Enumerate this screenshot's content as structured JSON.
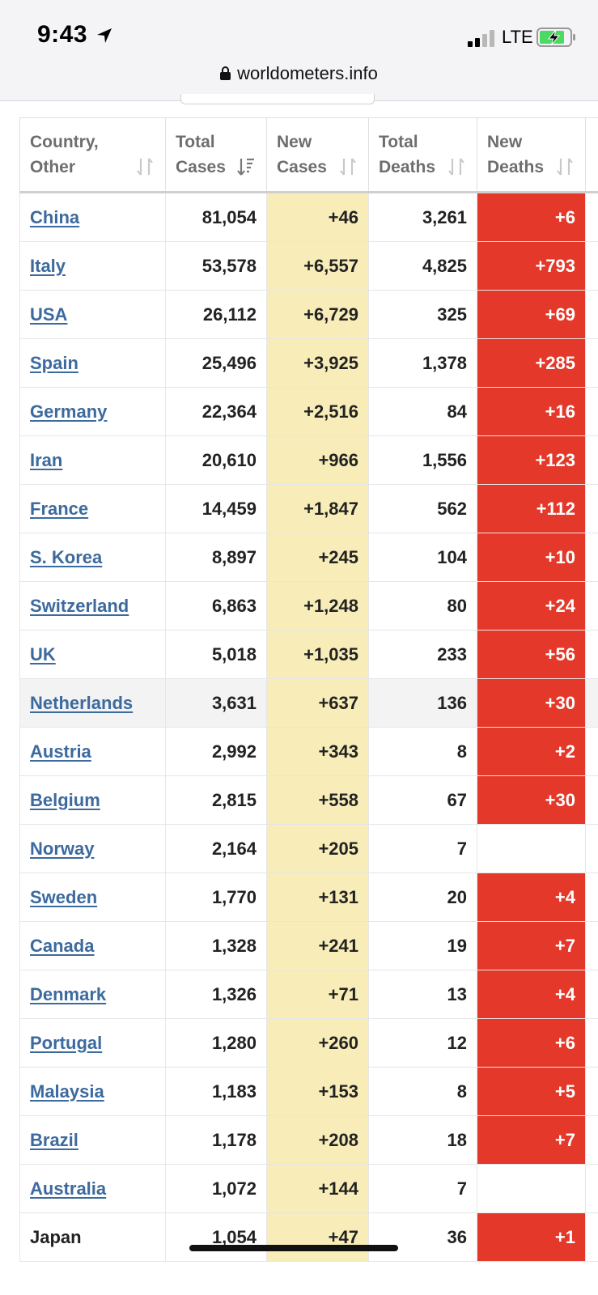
{
  "status_bar": {
    "time": "9:43",
    "network": "LTE",
    "location_icon": "location-arrow-icon",
    "signal_icon": "cellular-signal-icon",
    "battery_icon": "battery-charging-icon",
    "battery_color": "#4cd964"
  },
  "browser": {
    "url": "worldometers.info",
    "lock_icon": "lock-icon"
  },
  "table": {
    "headers": [
      {
        "line1": "Country,",
        "line2": "Other",
        "icon": "sort-icon"
      },
      {
        "line1": "Total",
        "line2": "Cases",
        "icon": "sort-desc-icon"
      },
      {
        "line1": "New",
        "line2": "Cases",
        "icon": "sort-icon"
      },
      {
        "line1": "Total",
        "line2": "Deaths",
        "icon": "sort-icon"
      },
      {
        "line1": "New",
        "line2": "Deaths",
        "icon": "sort-icon"
      }
    ],
    "colors": {
      "new_cases_bg": "#f8edb8",
      "new_deaths_bg": "#e4382a",
      "link": "#3d6a9e"
    },
    "rows": [
      {
        "country": "China",
        "total_cases": "81,054",
        "new_cases": "+46",
        "total_deaths": "3,261",
        "new_deaths": "+6",
        "link": true
      },
      {
        "country": "Italy",
        "total_cases": "53,578",
        "new_cases": "+6,557",
        "total_deaths": "4,825",
        "new_deaths": "+793",
        "link": true
      },
      {
        "country": "USA",
        "total_cases": "26,112",
        "new_cases": "+6,729",
        "total_deaths": "325",
        "new_deaths": "+69",
        "link": true
      },
      {
        "country": "Spain",
        "total_cases": "25,496",
        "new_cases": "+3,925",
        "total_deaths": "1,378",
        "new_deaths": "+285",
        "link": true
      },
      {
        "country": "Germany",
        "total_cases": "22,364",
        "new_cases": "+2,516",
        "total_deaths": "84",
        "new_deaths": "+16",
        "link": true
      },
      {
        "country": "Iran",
        "total_cases": "20,610",
        "new_cases": "+966",
        "total_deaths": "1,556",
        "new_deaths": "+123",
        "link": true
      },
      {
        "country": "France",
        "total_cases": "14,459",
        "new_cases": "+1,847",
        "total_deaths": "562",
        "new_deaths": "+112",
        "link": true
      },
      {
        "country": "S. Korea",
        "total_cases": "8,897",
        "new_cases": "+245",
        "total_deaths": "104",
        "new_deaths": "+10",
        "link": true
      },
      {
        "country": "Switzerland",
        "total_cases": "6,863",
        "new_cases": "+1,248",
        "total_deaths": "80",
        "new_deaths": "+24",
        "link": true
      },
      {
        "country": "UK",
        "total_cases": "5,018",
        "new_cases": "+1,035",
        "total_deaths": "233",
        "new_deaths": "+56",
        "link": true
      },
      {
        "country": "Netherlands",
        "total_cases": "3,631",
        "new_cases": "+637",
        "total_deaths": "136",
        "new_deaths": "+30",
        "link": true,
        "highlight": true
      },
      {
        "country": "Austria",
        "total_cases": "2,992",
        "new_cases": "+343",
        "total_deaths": "8",
        "new_deaths": "+2",
        "link": true
      },
      {
        "country": "Belgium",
        "total_cases": "2,815",
        "new_cases": "+558",
        "total_deaths": "67",
        "new_deaths": "+30",
        "link": true
      },
      {
        "country": "Norway",
        "total_cases": "2,164",
        "new_cases": "+205",
        "total_deaths": "7",
        "new_deaths": "",
        "link": true
      },
      {
        "country": "Sweden",
        "total_cases": "1,770",
        "new_cases": "+131",
        "total_deaths": "20",
        "new_deaths": "+4",
        "link": true
      },
      {
        "country": "Canada",
        "total_cases": "1,328",
        "new_cases": "+241",
        "total_deaths": "19",
        "new_deaths": "+7",
        "link": true
      },
      {
        "country": "Denmark",
        "total_cases": "1,326",
        "new_cases": "+71",
        "total_deaths": "13",
        "new_deaths": "+4",
        "link": true
      },
      {
        "country": "Portugal",
        "total_cases": "1,280",
        "new_cases": "+260",
        "total_deaths": "12",
        "new_deaths": "+6",
        "link": true
      },
      {
        "country": "Malaysia",
        "total_cases": "1,183",
        "new_cases": "+153",
        "total_deaths": "8",
        "new_deaths": "+5",
        "link": true
      },
      {
        "country": "Brazil",
        "total_cases": "1,178",
        "new_cases": "+208",
        "total_deaths": "18",
        "new_deaths": "+7",
        "link": true
      },
      {
        "country": "Australia",
        "total_cases": "1,072",
        "new_cases": "+144",
        "total_deaths": "7",
        "new_deaths": "",
        "link": true
      },
      {
        "country": "Japan",
        "total_cases": "1,054",
        "new_cases": "+47",
        "total_deaths": "36",
        "new_deaths": "+1",
        "link": false
      }
    ]
  }
}
